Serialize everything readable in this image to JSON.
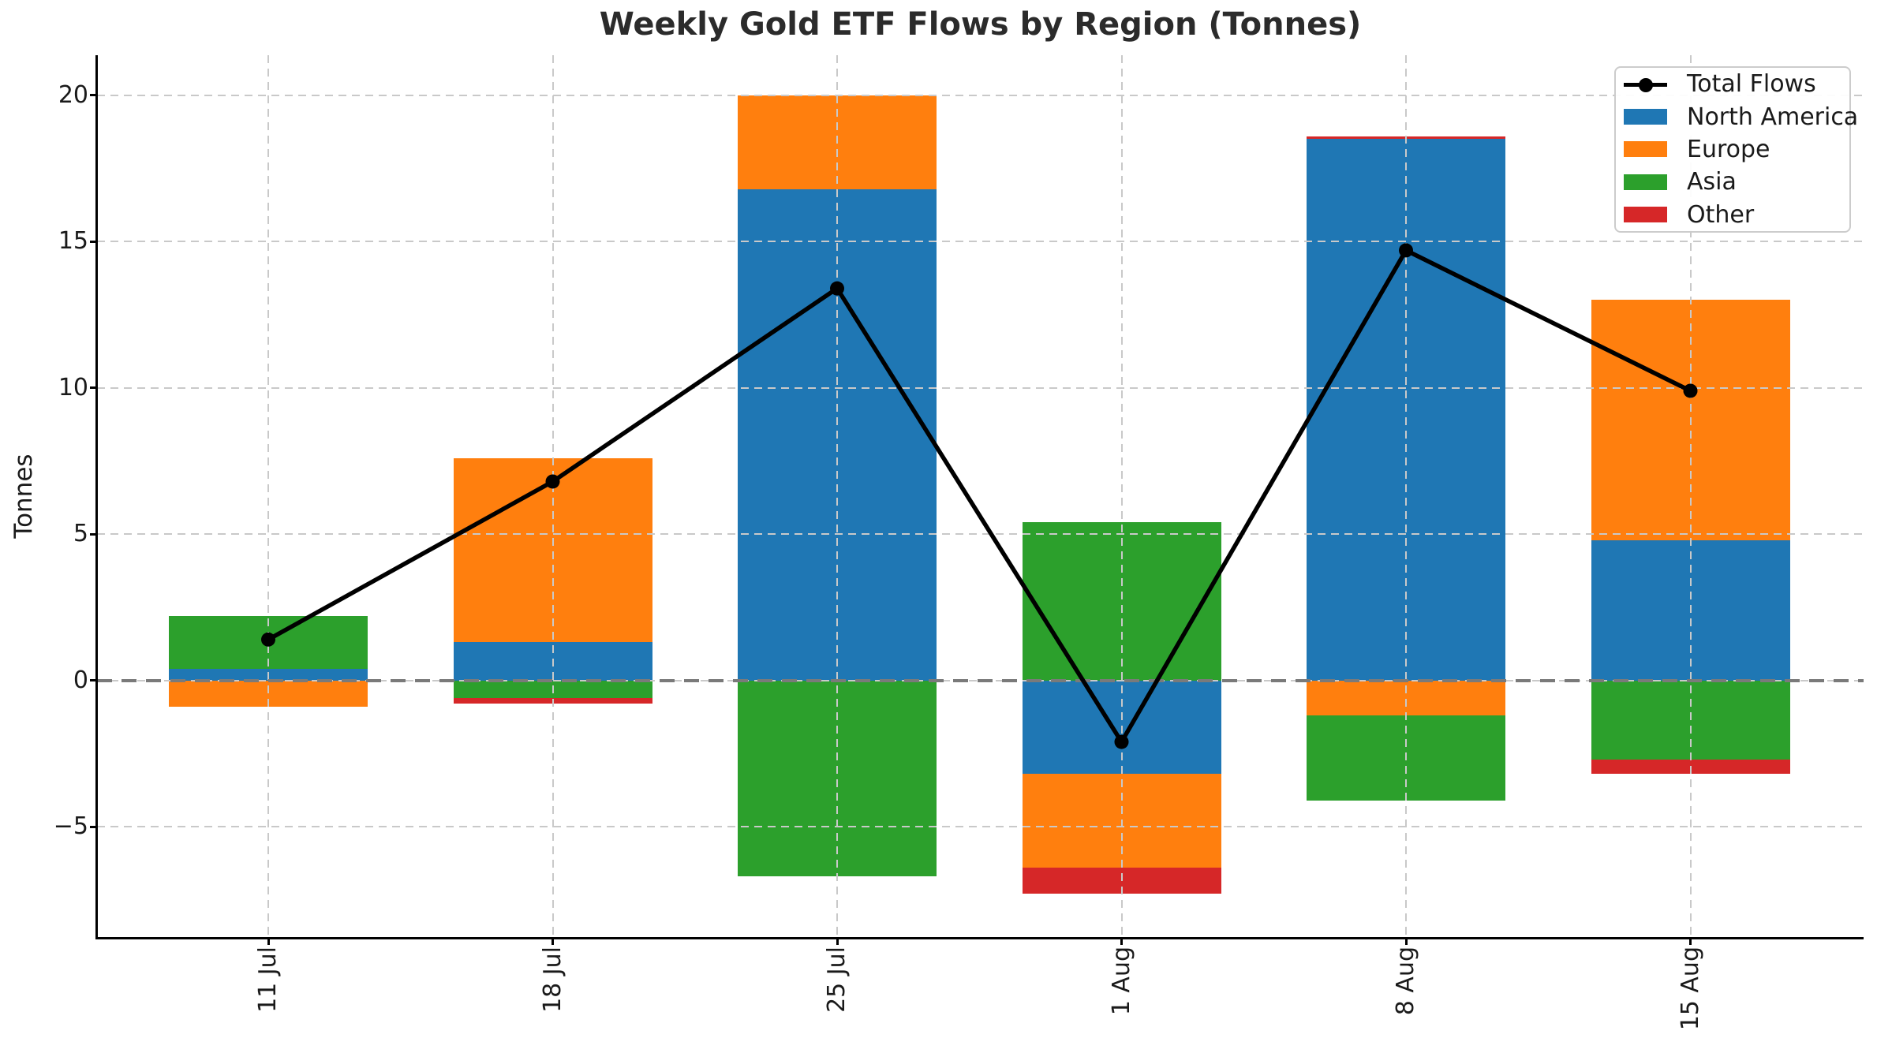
{
  "title": "Weekly Gold ETF Flows by Region (Tonnes)",
  "legend": {
    "items": [
      "Total Flows",
      "North America",
      "Europe",
      "Asia",
      "Other"
    ]
  },
  "colors": {
    "north_america": "#1f77b4",
    "europe": "#ff7f0e",
    "asia": "#2ca02c",
    "other": "#d62728",
    "total_line": "#000000",
    "grid": "#c9c9c9",
    "zero_line": "#7a7a7a",
    "axis": "#000000",
    "text": "#1a1a1a",
    "background": "#ffffff"
  },
  "chart_data": {
    "type": "bar",
    "subtype": "stacked-bar-with-line-overlay",
    "title": "Weekly Gold ETF Flows by Region (Tonnes)",
    "ylabel": "Tonnes",
    "xlabel": "",
    "categories": [
      "11 Jul",
      "18 Jul",
      "25 Jul",
      "1 Aug",
      "8 Aug",
      "15 Aug"
    ],
    "series": [
      {
        "name": "North America",
        "color": "#1f77b4",
        "values": [
          0.4,
          1.3,
          16.8,
          -3.2,
          18.5,
          4.8
        ]
      },
      {
        "name": "Europe",
        "color": "#ff7f0e",
        "values": [
          -0.9,
          6.3,
          3.2,
          -3.2,
          -1.2,
          8.2
        ]
      },
      {
        "name": "Asia",
        "color": "#2ca02c",
        "values": [
          1.8,
          -0.6,
          -6.7,
          5.4,
          -2.9,
          -2.7
        ]
      },
      {
        "name": "Other",
        "color": "#d62728",
        "values": [
          0.0,
          -0.2,
          0.0,
          -0.9,
          0.1,
          -0.5
        ]
      }
    ],
    "line_series": {
      "name": "Total Flows",
      "color": "#000000",
      "values": [
        1.4,
        6.8,
        13.4,
        -2.1,
        14.7,
        9.9
      ]
    },
    "yticks": [
      {
        "value": -5,
        "label": "−5"
      },
      {
        "value": 0,
        "label": "0"
      },
      {
        "value": 5,
        "label": "5"
      },
      {
        "value": 10,
        "label": "10"
      },
      {
        "value": 15,
        "label": "15"
      },
      {
        "value": 20,
        "label": "20"
      }
    ],
    "ylim": [
      -8.77,
      21.37
    ],
    "grid": true,
    "zero_line": true,
    "legend_position": "upper right"
  }
}
